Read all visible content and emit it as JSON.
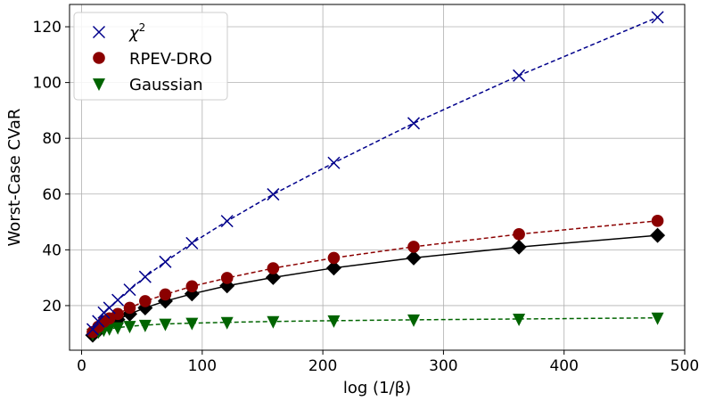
{
  "chart_data": {
    "type": "line",
    "xlabel": "log (1/β)",
    "ylabel": "Worst-Case CVaR",
    "xlim": [
      -10,
      500
    ],
    "ylim": [
      4,
      128
    ],
    "xticks": [
      0,
      100,
      200,
      300,
      400,
      500
    ],
    "yticks": [
      20,
      40,
      60,
      80,
      100,
      120
    ],
    "grid": true,
    "legend_position": "top-left",
    "x": [
      9.21,
      13.82,
      18.42,
      23.03,
      30.0,
      39.9,
      52.7,
      69.4,
      91.5,
      120.6,
      158.8,
      209.1,
      275.3,
      362.6,
      477.5
    ],
    "series": [
      {
        "name": "χ²",
        "legend_label": "χ",
        "legend_sup": "2",
        "marker": "x",
        "color": "#00008b",
        "line_style": "dashed",
        "show_in_legend": true,
        "values": [
          11.5,
          14.4,
          17.5,
          19.2,
          22.0,
          25.7,
          30.3,
          35.7,
          42.4,
          50.3,
          59.9,
          71.2,
          85.4,
          102.5,
          123.4
        ]
      },
      {
        "name": "RPEV-DRO",
        "legend_label": "RPEV-DRO",
        "marker": "circle",
        "color": "#8b0000",
        "line_style": "dashed",
        "show_in_legend": true,
        "values": [
          10.5,
          12.4,
          14.2,
          15.4,
          17.0,
          19.2,
          21.6,
          24.0,
          26.9,
          29.9,
          33.4,
          37.1,
          41.1,
          45.6,
          50.4
        ]
      },
      {
        "name": "Gaussian",
        "legend_label": "Gaussian",
        "marker": "triangle-down",
        "color": "#006400",
        "line_style": "dashed",
        "show_in_legend": true,
        "values": [
          9.8,
          10.6,
          11.3,
          11.7,
          12.1,
          12.6,
          13.0,
          13.4,
          13.7,
          14.0,
          14.3,
          14.6,
          14.9,
          15.2,
          15.6
        ]
      },
      {
        "name": "",
        "marker": "diamond",
        "color": "#000000",
        "line_style": "solid",
        "show_in_legend": false,
        "values": [
          9.4,
          11.0,
          12.5,
          13.5,
          15.0,
          17.0,
          19.2,
          21.6,
          24.2,
          27.1,
          30.1,
          33.5,
          37.1,
          41.0,
          45.2
        ]
      }
    ]
  }
}
